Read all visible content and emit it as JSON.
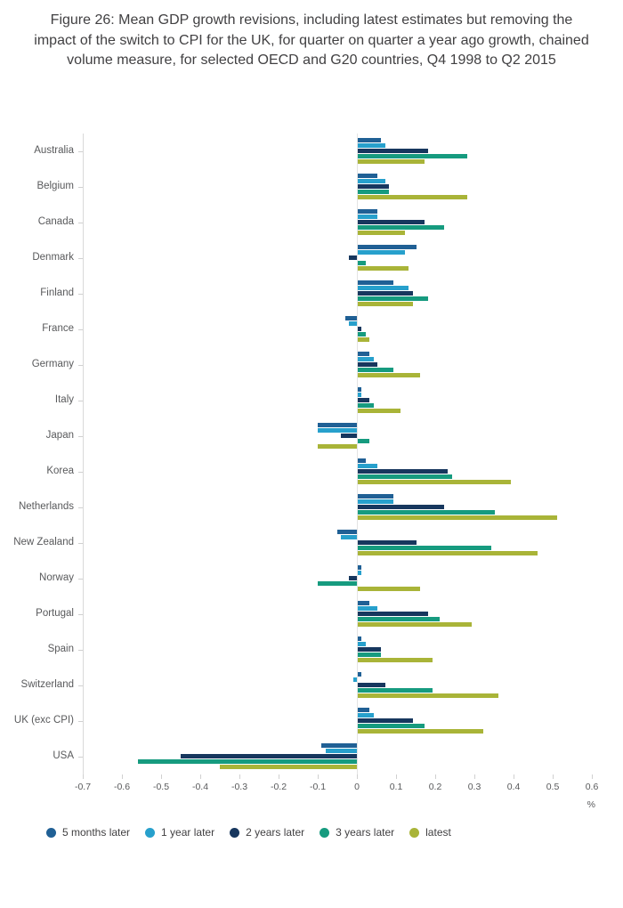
{
  "chart_data": {
    "type": "bar",
    "orientation": "horizontal",
    "title": "Figure 26: Mean GDP growth revisions, including latest estimates but removing the impact of the switch to CPI for the UK, for quarter on quarter a year ago growth, chained volume measure, for selected OECD and G20 countries, Q4 1998 to Q2 2015",
    "xlabel": "%",
    "xlim": [
      -0.7,
      0.6
    ],
    "xtick_values": [
      -0.7,
      -0.6,
      -0.5,
      -0.4,
      -0.3,
      -0.2,
      -0.1,
      0,
      0.1,
      0.2,
      0.3,
      0.4,
      0.5,
      0.6
    ],
    "xtick_labels": [
      "-0.7",
      "-0.6",
      "-0.5",
      "-0.4",
      "-0.3",
      "-0.2",
      "-0.1",
      "0",
      "0.1",
      "0.2",
      "0.3",
      "0.4",
      "0.5",
      "0.6"
    ],
    "grid": false,
    "legend_position": "bottom",
    "categories": [
      "Australia",
      "Belgium",
      "Canada",
      "Denmark",
      "Finland",
      "France",
      "Germany",
      "Italy",
      "Japan",
      "Korea",
      "Netherlands",
      "New Zealand",
      "Norway",
      "Portugal",
      "Spain",
      "Switzerland",
      "UK (exc CPI)",
      "USA"
    ],
    "series": [
      {
        "name": "5 months later",
        "color": "#206095",
        "values": [
          0.06,
          0.05,
          0.05,
          0.15,
          0.09,
          -0.03,
          0.03,
          0.01,
          -0.1,
          0.02,
          0.09,
          -0.05,
          0.01,
          0.03,
          0.01,
          0.01,
          0.03,
          -0.09
        ]
      },
      {
        "name": "1 year later",
        "color": "#27a0cc",
        "values": [
          0.07,
          0.07,
          0.05,
          0.12,
          0.13,
          -0.02,
          0.04,
          0.01,
          -0.1,
          0.05,
          0.09,
          -0.04,
          0.01,
          0.05,
          0.02,
          -0.01,
          0.04,
          -0.08
        ]
      },
      {
        "name": "2 years later",
        "color": "#17375e",
        "values": [
          0.18,
          0.08,
          0.17,
          -0.02,
          0.14,
          0.01,
          0.05,
          0.03,
          -0.04,
          0.23,
          0.22,
          0.15,
          -0.02,
          0.18,
          0.06,
          0.07,
          0.14,
          -0.45
        ]
      },
      {
        "name": "3 years later",
        "color": "#169b7f",
        "values": [
          0.28,
          0.08,
          0.22,
          0.02,
          0.18,
          0.02,
          0.09,
          0.04,
          0.03,
          0.24,
          0.35,
          0.34,
          -0.1,
          0.21,
          0.06,
          0.19,
          0.17,
          -0.56
        ]
      },
      {
        "name": "latest",
        "color": "#a9b438",
        "values": [
          0.17,
          0.28,
          0.12,
          0.13,
          0.14,
          0.03,
          0.16,
          0.11,
          -0.1,
          0.39,
          0.51,
          0.46,
          0.16,
          0.29,
          0.19,
          0.36,
          0.32,
          -0.35
        ]
      }
    ]
  }
}
